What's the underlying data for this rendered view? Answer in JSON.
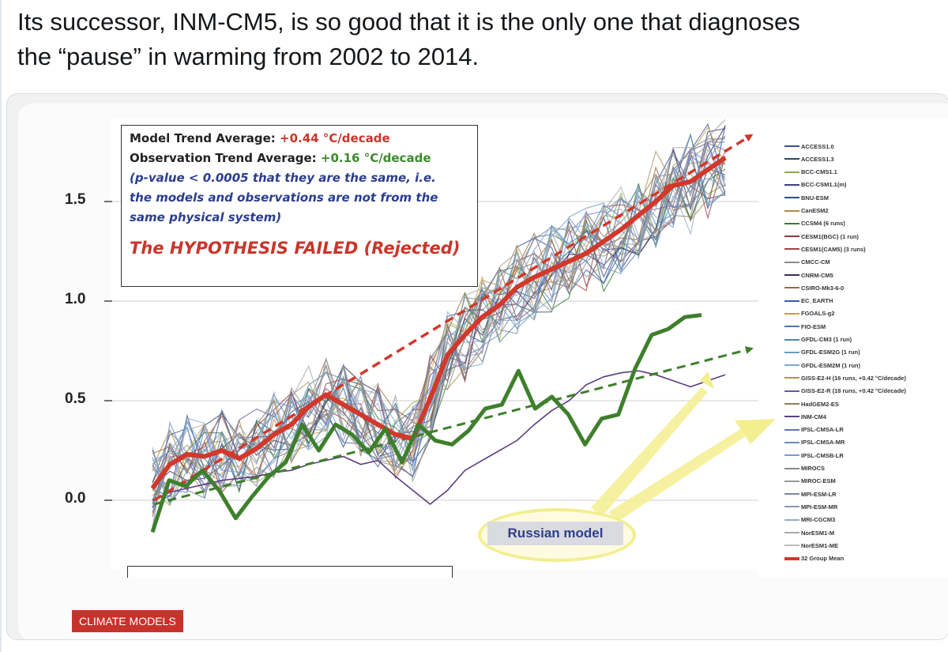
{
  "tweet": {
    "line1": "Its successor, INM-CM5, is so good that it is the only one that diagnoses",
    "line2": "the “pause” in warming from 2002 to 2014."
  },
  "colors": {
    "model_mean": "#d2382b",
    "observations": "#3e7f2c",
    "inm_cm4": "#5d3c82",
    "callout": "#f3ee8f"
  },
  "annotation": {
    "model_label": "Model Trend Average:",
    "model_value": "+0.44 °C/decade",
    "obs_label": "Observation Trend Average:",
    "obs_value": "+0.16 °C/decade",
    "pvalue_line1": "(p-value < 0.0005 that they are the same, i.e.",
    "pvalue_line2": "the models and observations are not from the",
    "pvalue_line3": "same physical system)",
    "verdict": "The HYPOTHESIS FAILED (Rejected)"
  },
  "callout": {
    "label": "Russian model"
  },
  "tag": {
    "label": "CLIMATE MODELS"
  },
  "chart_data": {
    "type": "line",
    "yticks": [
      "0.0",
      "0.5",
      "1.0",
      "1.5"
    ],
    "ytick_values": [
      0.0,
      0.5,
      1.0,
      1.5
    ],
    "ylim": [
      -0.3,
      1.9
    ],
    "xlim": [
      0,
      34
    ],
    "grid": true,
    "legend_position": "right",
    "legend": [
      "ACCESS1.0",
      "ACCESS1.3",
      "BCC-CMS1.1",
      "BCC-CSM1.1(m)",
      "BNU-ESM",
      "CanESM2",
      "CCSM4 (6 runs)",
      "CESM1(BGC) (1 run)",
      "CESM1(CAM5) (3 runs)",
      "CMCC-CM",
      "CNRM-CM5",
      "CSIRO-Mk3-6-0",
      "EC_EARTH",
      "FGOALS-g2",
      "FIO-ESM",
      "GFDL-CM3 (1 run)",
      "GFDL-ESM2G (1 run)",
      "GFDL-ESM2M (1 run)",
      "GISS-E2-H (16 runs, +0.42 °C/decade)",
      "GISS-E2-R (18 runs, +0.42 °C/decade)",
      "HadGEM2-ES",
      "INM-CM4",
      "IPSL-CMSA-LR",
      "IPSL-CMSA-MR",
      "IPSL-CMSB-LR",
      "MIROCS",
      "MIROC-ESM",
      "MPI-ESM-LR",
      "MPI-ESM-MR",
      "MRI-CGCM3",
      "NorESM1-M",
      "NorESM1-ME",
      "32 Group Mean"
    ],
    "legend_colors": [
      "#3b4e8f",
      "#2f4466",
      "#8da84a",
      "#3f3f7a",
      "#2d4f8e",
      "#b08a3c",
      "#3a7a3a",
      "#8a3a3a",
      "#9a4545",
      "#8a8a8a",
      "#33334f",
      "#9a6a4a",
      "#3a5aa0",
      "#c8a040",
      "#4a7aa8",
      "#4a8ab0",
      "#6a9ac0",
      "#7aaad0",
      "#b09060",
      "#6a5a9a",
      "#9a7a5a",
      "#5d3c82",
      "#5a7ab0",
      "#6a8ac0",
      "#7a9ad0",
      "#8a8a8a",
      "#9a9a9a",
      "#7a8aa0",
      "#8a9ab0",
      "#9aaac0",
      "#aaaaaa",
      "#bbbbbb",
      "#d2382b"
    ],
    "series": [
      {
        "name": "32 Group Mean",
        "values": [
          0.06,
          0.18,
          0.23,
          0.22,
          0.25,
          0.21,
          0.26,
          0.33,
          0.38,
          0.47,
          0.53,
          0.48,
          0.43,
          0.38,
          0.33,
          0.31,
          0.51,
          0.73,
          0.83,
          0.92,
          0.98,
          1.07,
          1.12,
          1.16,
          1.2,
          1.24,
          1.3,
          1.36,
          1.43,
          1.5,
          1.58,
          1.6,
          1.66,
          1.72
        ]
      },
      {
        "name": "INM-CM4",
        "values": [
          0.0,
          0.04,
          0.06,
          0.08,
          0.1,
          0.11,
          0.12,
          0.14,
          0.15,
          0.18,
          0.2,
          0.22,
          0.18,
          0.2,
          0.12,
          0.05,
          -0.02,
          0.05,
          0.15,
          0.2,
          0.25,
          0.3,
          0.38,
          0.45,
          0.5,
          0.58,
          0.62,
          0.64,
          0.65,
          0.63,
          0.6,
          0.57,
          0.6,
          0.63
        ]
      }
    ],
    "observations": {
      "values": [
        -0.16,
        0.1,
        0.07,
        0.15,
        0.05,
        -0.09,
        0.02,
        0.12,
        0.19,
        0.38,
        0.25,
        0.38,
        0.33,
        0.24,
        0.36,
        0.19,
        0.38,
        0.3,
        0.28,
        0.35,
        0.46,
        0.48,
        0.65,
        0.46,
        0.52,
        0.43,
        0.28,
        0.41,
        0.43,
        0.66,
        0.83,
        0.86,
        0.92,
        0.93
      ]
    },
    "trends": {
      "model_trend": {
        "start": 0.0,
        "end": 1.83,
        "unit": "°C/decade",
        "value": "+0.44"
      },
      "obs_trend": {
        "start": -0.02,
        "end": 0.76,
        "unit": "°C/decade",
        "value": "+0.16"
      }
    }
  }
}
